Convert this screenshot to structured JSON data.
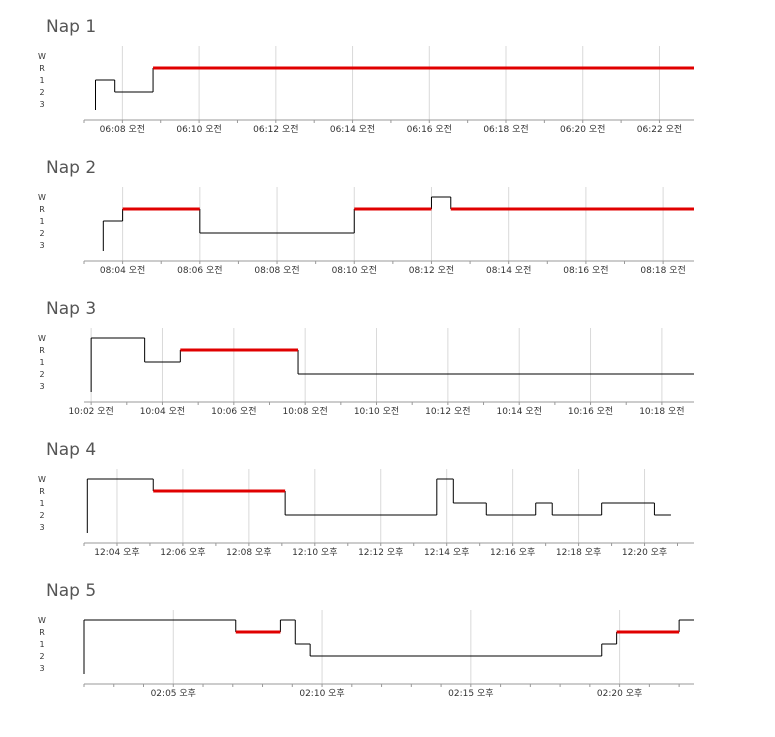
{
  "colors": {
    "awake": "#000000",
    "rem": "#e00000",
    "grid": "#d9d9d9",
    "axis": "#999999",
    "text": "#333333"
  },
  "y_levels": [
    "W",
    "R",
    "1",
    "2",
    "3"
  ],
  "chart_data": [
    {
      "type": "line",
      "step": true,
      "title": "Nap 1",
      "x_unit": "minutes",
      "xlim": [
        "06:07",
        "06:22.9"
      ],
      "ylim": [
        "W",
        "3"
      ],
      "grid": true,
      "ticks": [
        {
          "t": "06:08",
          "label": "06:08 오전"
        },
        {
          "t": "06:10",
          "label": "06:10 오전"
        },
        {
          "t": "06:12",
          "label": "06:12 오전"
        },
        {
          "t": "06:14",
          "label": "06:14 오전"
        },
        {
          "t": "06:16",
          "label": "06:16 오전"
        },
        {
          "t": "06:18",
          "label": "06:18 오전"
        },
        {
          "t": "06:20",
          "label": "06:20 오전"
        },
        {
          "t": "06:22",
          "label": "06:22 오전"
        }
      ],
      "stages": [
        {
          "start": "06:07.3",
          "end": "06:07.8",
          "stage": "1"
        },
        {
          "start": "06:07.8",
          "end": "06:08.8",
          "stage": "2"
        },
        {
          "start": "06:08.8",
          "end": "06:22.9",
          "stage": "R"
        }
      ]
    },
    {
      "type": "line",
      "step": true,
      "title": "Nap 2",
      "x_unit": "minutes",
      "xlim": [
        "08:03",
        "08:18.8"
      ],
      "ylim": [
        "W",
        "3"
      ],
      "grid": true,
      "ticks": [
        {
          "t": "08:04",
          "label": "08:04 오전"
        },
        {
          "t": "08:06",
          "label": "08:06 오전"
        },
        {
          "t": "08:08",
          "label": "08:08 오전"
        },
        {
          "t": "08:10",
          "label": "08:10 오전"
        },
        {
          "t": "08:12",
          "label": "08:12 오전"
        },
        {
          "t": "08:14",
          "label": "08:14 오전"
        },
        {
          "t": "08:16",
          "label": "08:16 오전"
        },
        {
          "t": "08:18",
          "label": "08:18 오전"
        }
      ],
      "stages": [
        {
          "start": "08:03.5",
          "end": "08:04",
          "stage": "1"
        },
        {
          "start": "08:04",
          "end": "08:06",
          "stage": "R"
        },
        {
          "start": "08:06",
          "end": "08:10",
          "stage": "2"
        },
        {
          "start": "08:10",
          "end": "08:12",
          "stage": "R"
        },
        {
          "start": "08:12",
          "end": "08:12.5",
          "stage": "W"
        },
        {
          "start": "08:12.5",
          "end": "08:18.8",
          "stage": "R"
        }
      ]
    },
    {
      "type": "line",
      "step": true,
      "title": "Nap 3",
      "x_unit": "minutes",
      "xlim": [
        "10:01.8",
        "10:18.9"
      ],
      "ylim": [
        "W",
        "3"
      ],
      "grid": true,
      "ticks": [
        {
          "t": "10:02",
          "label": "10:02 오전"
        },
        {
          "t": "10:04",
          "label": "10:04 오전"
        },
        {
          "t": "10:06",
          "label": "10:06 오전"
        },
        {
          "t": "10:08",
          "label": "10:08 오전"
        },
        {
          "t": "10:10",
          "label": "10:10 오전"
        },
        {
          "t": "10:12",
          "label": "10:12 오전"
        },
        {
          "t": "10:14",
          "label": "10:14 오전"
        },
        {
          "t": "10:16",
          "label": "10:16 오전"
        },
        {
          "t": "10:18",
          "label": "10:18 오전"
        }
      ],
      "stages": [
        {
          "start": "10:02",
          "end": "10:03.5",
          "stage": "W"
        },
        {
          "start": "10:03.5",
          "end": "10:04.5",
          "stage": "1"
        },
        {
          "start": "10:04.5",
          "end": "10:07.8",
          "stage": "R"
        },
        {
          "start": "10:07.8",
          "end": "10:18.9",
          "stage": "2"
        }
      ]
    },
    {
      "type": "line",
      "step": true,
      "title": "Nap 4",
      "x_unit": "minutes",
      "xlim": [
        "12:03",
        "12:21.5"
      ],
      "ylim": [
        "W",
        "3"
      ],
      "grid": true,
      "ticks": [
        {
          "t": "12:04",
          "label": "12:04 오후"
        },
        {
          "t": "12:06",
          "label": "12:06 오후"
        },
        {
          "t": "12:08",
          "label": "12:08 오후"
        },
        {
          "t": "12:10",
          "label": "12:10 오후"
        },
        {
          "t": "12:12",
          "label": "12:12 오후"
        },
        {
          "t": "12:14",
          "label": "12:14 오후"
        },
        {
          "t": "12:16",
          "label": "12:16 오후"
        },
        {
          "t": "12:18",
          "label": "12:18 오후"
        },
        {
          "t": "12:20",
          "label": "12:20 오후"
        }
      ],
      "stages": [
        {
          "start": "12:03.1",
          "end": "12:05.1",
          "stage": "W"
        },
        {
          "start": "12:05.1",
          "end": "12:09.1",
          "stage": "R"
        },
        {
          "start": "12:09.1",
          "end": "12:13.7",
          "stage": "2"
        },
        {
          "start": "12:13.7",
          "end": "12:14.2",
          "stage": "W"
        },
        {
          "start": "12:14.2",
          "end": "12:15.2",
          "stage": "1"
        },
        {
          "start": "12:15.2",
          "end": "12:16.7",
          "stage": "2"
        },
        {
          "start": "12:16.7",
          "end": "12:17.2",
          "stage": "1"
        },
        {
          "start": "12:17.2",
          "end": "12:18.7",
          "stage": "2"
        },
        {
          "start": "12:18.7",
          "end": "12:20.3",
          "stage": "1"
        },
        {
          "start": "12:20.3",
          "end": "12:20.8",
          "stage": "2"
        }
      ]
    },
    {
      "type": "line",
      "step": true,
      "title": "Nap 5",
      "x_unit": "minutes",
      "xlim": [
        "02:02",
        "02:22.5"
      ],
      "ylim": [
        "W",
        "3"
      ],
      "grid": true,
      "ticks": [
        {
          "t": "02:05",
          "label": "02:05 오후"
        },
        {
          "t": "02:10",
          "label": "02:10 오후"
        },
        {
          "t": "02:15",
          "label": "02:15 오후"
        },
        {
          "t": "02:20",
          "label": "02:20 오후"
        }
      ],
      "stages": [
        {
          "start": "02:02",
          "end": "02:07.1",
          "stage": "W"
        },
        {
          "start": "02:07.1",
          "end": "02:08.6",
          "stage": "R"
        },
        {
          "start": "02:08.6",
          "end": "02:09.1",
          "stage": "W"
        },
        {
          "start": "02:09.1",
          "end": "02:09.6",
          "stage": "1"
        },
        {
          "start": "02:09.6",
          "end": "02:19.4",
          "stage": "2"
        },
        {
          "start": "02:19.4",
          "end": "02:19.9",
          "stage": "1"
        },
        {
          "start": "02:19.9",
          "end": "02:22",
          "stage": "R"
        },
        {
          "start": "02:22",
          "end": "02:22.5",
          "stage": "W"
        }
      ]
    }
  ]
}
